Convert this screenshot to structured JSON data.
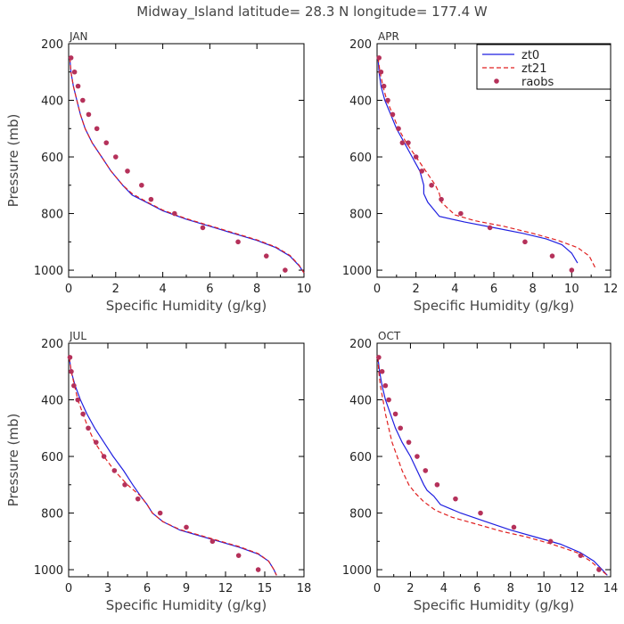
{
  "figure": {
    "title": "Midway_Island  latitude= 28.3 N longitude= 177.4 W"
  },
  "chart_data": [
    {
      "type": "line",
      "panel": "JAN",
      "xlabel": "Specific Humidity (g/kg)",
      "ylabel": "Pressure (mb)",
      "xlim": [
        0,
        10
      ],
      "ylim": [
        200,
        1025
      ],
      "y_inverted": true,
      "xticks": [
        0,
        2,
        4,
        6,
        8,
        10
      ],
      "yticks": [
        200,
        400,
        600,
        800,
        1000
      ],
      "series": [
        {
          "name": "zt0",
          "style": "solid",
          "color": "#1f1fe0",
          "x": [
            0.05,
            0.1,
            0.2,
            0.35,
            0.5,
            0.7,
            1.0,
            1.4,
            1.8,
            2.3,
            2.7,
            3.3,
            4.0,
            5.0,
            6.0,
            7.0,
            8.0,
            8.8,
            9.4,
            9.8,
            10.0
          ],
          "y": [
            250,
            300,
            350,
            400,
            450,
            500,
            550,
            600,
            650,
            700,
            735,
            760,
            790,
            820,
            845,
            870,
            895,
            920,
            950,
            985,
            1010
          ]
        },
        {
          "name": "zt21",
          "style": "dashed",
          "color": "#e02020",
          "x": [
            0.05,
            0.1,
            0.2,
            0.35,
            0.5,
            0.7,
            1.0,
            1.4,
            1.8,
            2.3,
            2.7,
            3.3,
            4.0,
            5.0,
            6.0,
            7.0,
            8.0,
            8.8,
            9.4,
            9.8,
            10.0
          ],
          "y": [
            250,
            300,
            350,
            400,
            450,
            500,
            550,
            600,
            650,
            700,
            730,
            758,
            788,
            818,
            843,
            868,
            893,
            918,
            948,
            983,
            1010
          ]
        },
        {
          "name": "raobs",
          "style": "dots",
          "color": "#b5315a",
          "x": [
            0.1,
            0.25,
            0.4,
            0.6,
            0.85,
            1.2,
            1.6,
            2.0,
            2.5,
            3.1,
            3.5,
            4.5,
            5.7,
            7.2,
            8.4,
            9.2
          ],
          "y": [
            250,
            300,
            350,
            400,
            450,
            500,
            550,
            600,
            650,
            700,
            750,
            800,
            850,
            900,
            950,
            1000
          ]
        }
      ]
    },
    {
      "type": "line",
      "panel": "APR",
      "xlabel": "Specific Humidity (g/kg)",
      "ylabel": "",
      "xlim": [
        0,
        12
      ],
      "ylim": [
        200,
        1025
      ],
      "y_inverted": true,
      "xticks": [
        0,
        2,
        4,
        6,
        8,
        10,
        12
      ],
      "yticks": [
        200,
        400,
        600,
        800,
        1000
      ],
      "legend": {
        "position": "top-right",
        "entries": [
          "zt0",
          "zt21",
          "raobs"
        ]
      },
      "series": [
        {
          "name": "zt0",
          "style": "solid",
          "color": "#1f1fe0",
          "x": [
            0.05,
            0.1,
            0.2,
            0.4,
            0.7,
            1.0,
            1.4,
            1.8,
            2.2,
            2.4,
            2.4,
            2.6,
            3.2,
            4.5,
            6.0,
            7.5,
            8.7,
            9.5,
            10.0,
            10.3
          ],
          "y": [
            250,
            300,
            350,
            400,
            450,
            500,
            550,
            600,
            650,
            700,
            730,
            760,
            810,
            830,
            850,
            870,
            890,
            910,
            940,
            975
          ]
        },
        {
          "name": "zt21",
          "style": "dashed",
          "color": "#e02020",
          "x": [
            0.05,
            0.15,
            0.3,
            0.5,
            0.8,
            1.1,
            1.5,
            2.0,
            2.5,
            3.0,
            3.2,
            3.3,
            4.0,
            5.0,
            6.5,
            8.0,
            9.3,
            10.3,
            10.9,
            11.2
          ],
          "y": [
            250,
            300,
            350,
            400,
            450,
            500,
            550,
            600,
            650,
            700,
            730,
            760,
            805,
            825,
            845,
            870,
            895,
            920,
            950,
            990
          ]
        },
        {
          "name": "raobs",
          "style": "dots",
          "color": "#b5315a",
          "x": [
            0.1,
            0.2,
            0.35,
            0.55,
            0.8,
            1.1,
            1.3,
            1.6,
            2.0,
            2.3,
            2.8,
            3.3,
            4.3,
            5.8,
            7.6,
            9.0,
            10.0
          ],
          "y": [
            250,
            300,
            350,
            400,
            450,
            500,
            550,
            550,
            600,
            650,
            700,
            750,
            800,
            850,
            900,
            950,
            1000
          ]
        }
      ]
    },
    {
      "type": "line",
      "panel": "JUL",
      "xlabel": "Specific Humidity (g/kg)",
      "ylabel": "Pressure (mb)",
      "xlim": [
        0,
        18
      ],
      "ylim": [
        200,
        1025
      ],
      "y_inverted": true,
      "xticks": [
        0,
        3,
        6,
        9,
        12,
        15,
        18
      ],
      "yticks": [
        200,
        400,
        600,
        800,
        1000
      ],
      "series": [
        {
          "name": "zt0",
          "style": "solid",
          "color": "#1f1fe0",
          "x": [
            0.05,
            0.2,
            0.5,
            0.9,
            1.4,
            2.0,
            2.7,
            3.4,
            4.2,
            4.9,
            5.5,
            6.0,
            6.4,
            7.2,
            8.5,
            10.0,
            11.5,
            13.0,
            14.5,
            15.3,
            15.7,
            15.9
          ],
          "y": [
            250,
            300,
            350,
            400,
            450,
            500,
            550,
            600,
            650,
            700,
            740,
            770,
            800,
            830,
            860,
            880,
            900,
            920,
            945,
            970,
            1000,
            1020
          ]
        },
        {
          "name": "zt21",
          "style": "dashed",
          "color": "#e02020",
          "x": [
            0.05,
            0.2,
            0.45,
            0.7,
            1.1,
            1.5,
            2.0,
            2.7,
            3.5,
            4.5,
            5.5,
            6.0,
            6.4,
            7.2,
            8.5,
            10.0,
            11.5,
            13.0,
            14.5,
            15.3,
            15.7,
            15.9
          ],
          "y": [
            250,
            300,
            350,
            400,
            450,
            500,
            550,
            600,
            650,
            700,
            740,
            770,
            800,
            830,
            858,
            878,
            898,
            918,
            943,
            970,
            1000,
            1020
          ]
        },
        {
          "name": "raobs",
          "style": "dots",
          "color": "#b5315a",
          "x": [
            0.1,
            0.2,
            0.4,
            0.7,
            1.1,
            1.5,
            2.1,
            2.7,
            3.5,
            4.3,
            5.3,
            7.0,
            9.0,
            11.0,
            13.0,
            14.5
          ],
          "y": [
            250,
            300,
            350,
            400,
            450,
            500,
            550,
            600,
            650,
            700,
            750,
            800,
            850,
            900,
            950,
            1000
          ]
        }
      ]
    },
    {
      "type": "line",
      "panel": "OCT",
      "xlabel": "Specific Humidity (g/kg)",
      "ylabel": "",
      "xlim": [
        0,
        14
      ],
      "ylim": [
        200,
        1025
      ],
      "y_inverted": true,
      "xticks": [
        0,
        2,
        4,
        6,
        8,
        10,
        12,
        14
      ],
      "yticks": [
        200,
        400,
        600,
        800,
        1000
      ],
      "series": [
        {
          "name": "zt0",
          "style": "solid",
          "color": "#1f1fe0",
          "x": [
            0.05,
            0.15,
            0.3,
            0.5,
            0.8,
            1.1,
            1.5,
            2.0,
            2.4,
            2.8,
            3.0,
            3.4,
            3.8,
            5.0,
            6.5,
            8.0,
            9.5,
            11.0,
            12.2,
            13.0,
            13.5,
            13.8
          ],
          "y": [
            250,
            300,
            350,
            400,
            450,
            500,
            550,
            600,
            650,
            700,
            720,
            740,
            770,
            800,
            830,
            860,
            885,
            910,
            940,
            970,
            1000,
            1020
          ]
        },
        {
          "name": "zt21",
          "style": "dashed",
          "color": "#e02020",
          "x": [
            0.05,
            0.1,
            0.2,
            0.35,
            0.5,
            0.7,
            0.9,
            1.2,
            1.5,
            1.9,
            2.3,
            2.8,
            3.5,
            4.5,
            6.0,
            7.5,
            9.0,
            10.5,
            12.0,
            12.8,
            13.4,
            13.8
          ],
          "y": [
            250,
            300,
            350,
            400,
            450,
            500,
            550,
            600,
            650,
            700,
            730,
            760,
            790,
            815,
            840,
            865,
            885,
            910,
            940,
            970,
            1000,
            1020
          ]
        },
        {
          "name": "raobs",
          "style": "dots",
          "color": "#b5315a",
          "x": [
            0.1,
            0.3,
            0.5,
            0.7,
            1.1,
            1.4,
            1.9,
            2.4,
            2.9,
            3.6,
            4.7,
            6.2,
            8.2,
            10.4,
            12.2,
            13.3
          ],
          "y": [
            250,
            300,
            350,
            400,
            450,
            500,
            550,
            600,
            650,
            700,
            750,
            800,
            850,
            900,
            950,
            1000
          ]
        }
      ]
    }
  ]
}
